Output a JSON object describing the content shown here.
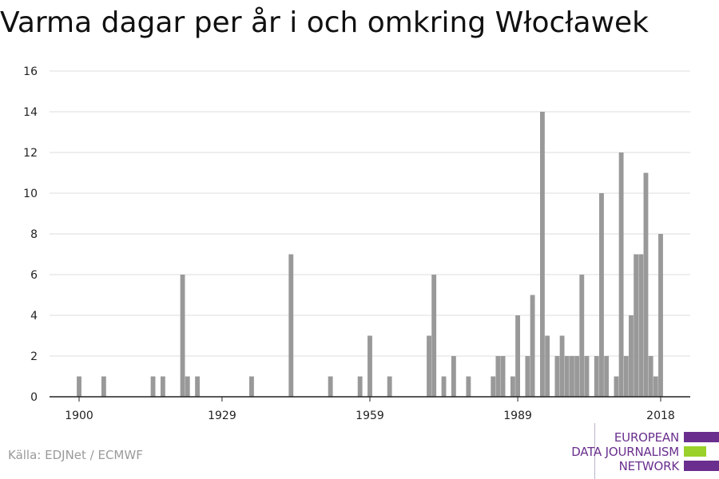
{
  "header": {
    "title": "Varma dagar per år i och omkring Włocławek"
  },
  "footer": {
    "source": "Källa: EDJNet / ECMWF"
  },
  "logo": {
    "line1": "EUROPEAN",
    "line2": "DATA JOURNALISM",
    "line3": "NETWORK",
    "colors": {
      "purple": "#6a2f8e",
      "green": "#9bd12b"
    }
  },
  "chart_data": {
    "type": "bar",
    "title": "Varma dagar per år i och omkring Włocławek",
    "xlabel": "",
    "ylabel": "",
    "xlim": [
      1894,
      2024
    ],
    "ylim": [
      0,
      16
    ],
    "y_ticks": [
      0,
      2,
      4,
      6,
      8,
      10,
      12,
      14,
      16
    ],
    "x_ticks": [
      1900,
      1929,
      1959,
      1989,
      2018
    ],
    "grid": true,
    "bar_color": "#999999",
    "data": [
      {
        "x": 1900,
        "y": 1
      },
      {
        "x": 1905,
        "y": 1
      },
      {
        "x": 1915,
        "y": 1
      },
      {
        "x": 1917,
        "y": 1
      },
      {
        "x": 1921,
        "y": 6
      },
      {
        "x": 1922,
        "y": 1
      },
      {
        "x": 1924,
        "y": 1
      },
      {
        "x": 1935,
        "y": 1
      },
      {
        "x": 1943,
        "y": 7
      },
      {
        "x": 1951,
        "y": 1
      },
      {
        "x": 1957,
        "y": 1
      },
      {
        "x": 1959,
        "y": 3
      },
      {
        "x": 1963,
        "y": 1
      },
      {
        "x": 1971,
        "y": 3
      },
      {
        "x": 1972,
        "y": 6
      },
      {
        "x": 1974,
        "y": 1
      },
      {
        "x": 1976,
        "y": 2
      },
      {
        "x": 1979,
        "y": 1
      },
      {
        "x": 1984,
        "y": 1
      },
      {
        "x": 1985,
        "y": 2
      },
      {
        "x": 1986,
        "y": 2
      },
      {
        "x": 1988,
        "y": 1
      },
      {
        "x": 1989,
        "y": 4
      },
      {
        "x": 1991,
        "y": 2
      },
      {
        "x": 1992,
        "y": 5
      },
      {
        "x": 1994,
        "y": 14
      },
      {
        "x": 1995,
        "y": 3
      },
      {
        "x": 1997,
        "y": 2
      },
      {
        "x": 1998,
        "y": 3
      },
      {
        "x": 1999,
        "y": 2
      },
      {
        "x": 2000,
        "y": 2
      },
      {
        "x": 2001,
        "y": 2
      },
      {
        "x": 2002,
        "y": 6
      },
      {
        "x": 2003,
        "y": 2
      },
      {
        "x": 2005,
        "y": 2
      },
      {
        "x": 2006,
        "y": 10
      },
      {
        "x": 2007,
        "y": 2
      },
      {
        "x": 2009,
        "y": 1
      },
      {
        "x": 2010,
        "y": 12
      },
      {
        "x": 2011,
        "y": 2
      },
      {
        "x": 2012,
        "y": 4
      },
      {
        "x": 2013,
        "y": 7
      },
      {
        "x": 2014,
        "y": 7
      },
      {
        "x": 2015,
        "y": 11
      },
      {
        "x": 2016,
        "y": 2
      },
      {
        "x": 2017,
        "y": 1
      },
      {
        "x": 2018,
        "y": 8
      }
    ]
  }
}
